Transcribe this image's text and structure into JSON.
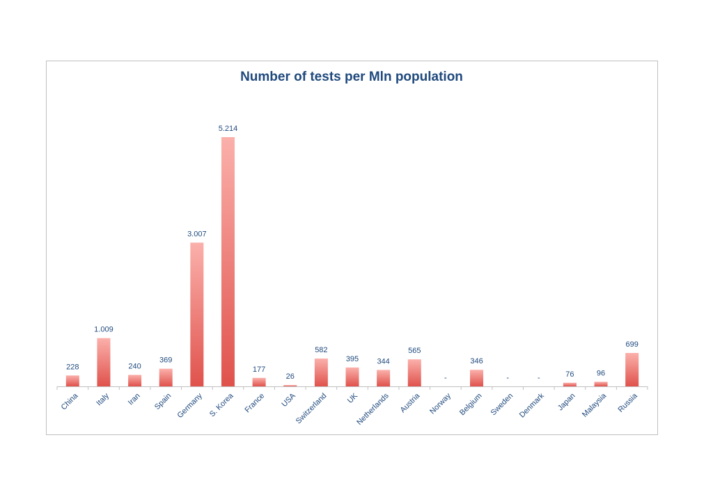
{
  "chart_data": {
    "type": "bar",
    "title": "Number of tests per Mln population",
    "xlabel": "",
    "ylabel": "",
    "categories": [
      "China",
      "Italy",
      "Iran",
      "Spain",
      "Germany",
      "S. Korea",
      "France",
      "USA",
      "Switzerland",
      "UK",
      "Netherlands",
      "Austria",
      "Norway",
      "Belgium",
      "Sweden",
      "Denmark",
      "Japan",
      "Malaysia",
      "Russia"
    ],
    "values": [
      228,
      1009,
      240,
      369,
      3007,
      5214,
      177,
      26,
      582,
      395,
      344,
      565,
      null,
      346,
      null,
      null,
      76,
      96,
      699
    ],
    "data_labels": [
      "228",
      "1.009",
      "240",
      "369",
      "3.007",
      "5.214",
      "177",
      "26",
      "582",
      "395",
      "344",
      "565",
      "-",
      "346",
      "-",
      "-",
      "76",
      "96",
      "699"
    ],
    "ylim": [
      0,
      5214
    ],
    "grid": false,
    "legend": "none",
    "colors": {
      "bar_top": "#fbb0ab",
      "bar_bottom": "#e0524c",
      "axis": "#bfbfbf",
      "text": "#1f497d"
    }
  }
}
